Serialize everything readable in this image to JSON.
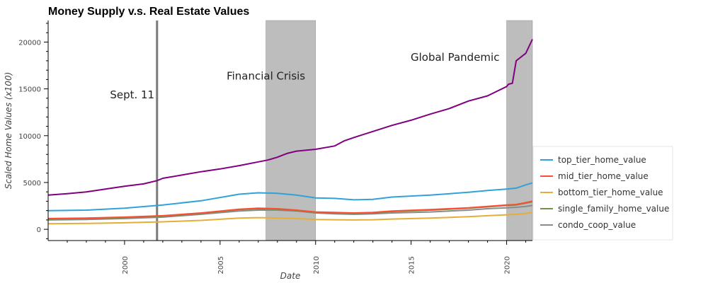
{
  "chart_data": {
    "type": "line",
    "title": "Money Supply v.s. Real Estate Values",
    "xlabel": "Date",
    "ylabel": "Scaled Home Values (x100)",
    "xlim": [
      1996.0,
      2021.35
    ],
    "ylim": [
      -1200,
      22300
    ],
    "x_ticks": [
      2000,
      2005,
      2010,
      2015,
      2020
    ],
    "x_tick_labels": [
      "2000",
      "2005",
      "2010",
      "2015",
      "2020"
    ],
    "y_ticks": [
      0,
      5000,
      10000,
      15000,
      20000
    ],
    "y_tick_labels": [
      "0",
      "5000",
      "10000",
      "15000",
      "20000"
    ],
    "grid": false,
    "legend_position": "right",
    "annotations": [
      {
        "label": "Sept. 11",
        "type": "vline",
        "x": 2001.7,
        "text_x": 2000.4,
        "text_y": 14000
      },
      {
        "label": "Financial Crisis",
        "type": "span",
        "x0": 2007.4,
        "x1": 2010.0,
        "text_x": 2007.4,
        "text_y": 16000
      },
      {
        "label": "Global Pandemic",
        "type": "span",
        "x0": 2020.0,
        "x1": 2021.35,
        "text_x": 2017.3,
        "text_y": 18000
      }
    ],
    "money_supply": {
      "color": "#800080",
      "x": [
        1996,
        1997,
        1998,
        1999,
        2000,
        2001,
        2001.7,
        2002,
        2003,
        2004,
        2005,
        2006,
        2007,
        2007.5,
        2008,
        2008.5,
        2009,
        2010,
        2011,
        2011.5,
        2012,
        2013,
        2014,
        2015,
        2016,
        2017,
        2018,
        2019,
        2020,
        2020.1,
        2020.3,
        2020.5,
        2021,
        2021.35
      ],
      "values": [
        3650,
        3800,
        4000,
        4300,
        4600,
        4850,
        5200,
        5450,
        5800,
        6150,
        6450,
        6800,
        7200,
        7400,
        7700,
        8100,
        8350,
        8550,
        8900,
        9450,
        9800,
        10450,
        11100,
        11650,
        12300,
        12900,
        13700,
        14250,
        15250,
        15500,
        15600,
        18000,
        18800,
        20300
      ]
    },
    "categories_x": [
      1996,
      1998,
      2000,
      2002,
      2004,
      2006,
      2007,
      2008,
      2009,
      2010,
      2011,
      2012,
      2013,
      2014,
      2016,
      2018,
      2019,
      2020,
      2020.5,
      2021,
      2021.35
    ],
    "series": [
      {
        "name": "top_tier_home_value",
        "color": "#30a2da",
        "values": [
          2000,
          2050,
          2250,
          2600,
          3050,
          3750,
          3900,
          3850,
          3650,
          3350,
          3300,
          3150,
          3200,
          3450,
          3650,
          3950,
          4150,
          4300,
          4400,
          4750,
          4950
        ]
      },
      {
        "name": "mid_tier_home_value",
        "color": "#fc4f30",
        "values": [
          1150,
          1200,
          1300,
          1450,
          1750,
          2150,
          2250,
          2200,
          2050,
          1850,
          1800,
          1750,
          1800,
          1950,
          2100,
          2300,
          2450,
          2600,
          2650,
          2850,
          3000
        ]
      },
      {
        "name": "bottom_tier_home_value",
        "color": "#e5ae38",
        "values": [
          600,
          630,
          700,
          800,
          950,
          1200,
          1250,
          1220,
          1150,
          1050,
          1020,
          1000,
          1020,
          1100,
          1200,
          1350,
          1450,
          1550,
          1600,
          1700,
          1800
        ]
      },
      {
        "name": "single_family_home_value",
        "color": "#6d904f",
        "values": [
          1100,
          1150,
          1250,
          1400,
          1700,
          2100,
          2200,
          2150,
          2000,
          1800,
          1750,
          1700,
          1750,
          1900,
          2050,
          2250,
          2400,
          2550,
          2600,
          2800,
          2950
        ]
      },
      {
        "name": "condo_coop_value",
        "color": "#8b8b8b",
        "values": [
          1000,
          1050,
          1150,
          1300,
          1600,
          1950,
          2050,
          2050,
          1950,
          1750,
          1650,
          1600,
          1650,
          1750,
          1850,
          2050,
          2200,
          2300,
          2350,
          2450,
          2550
        ]
      }
    ]
  }
}
